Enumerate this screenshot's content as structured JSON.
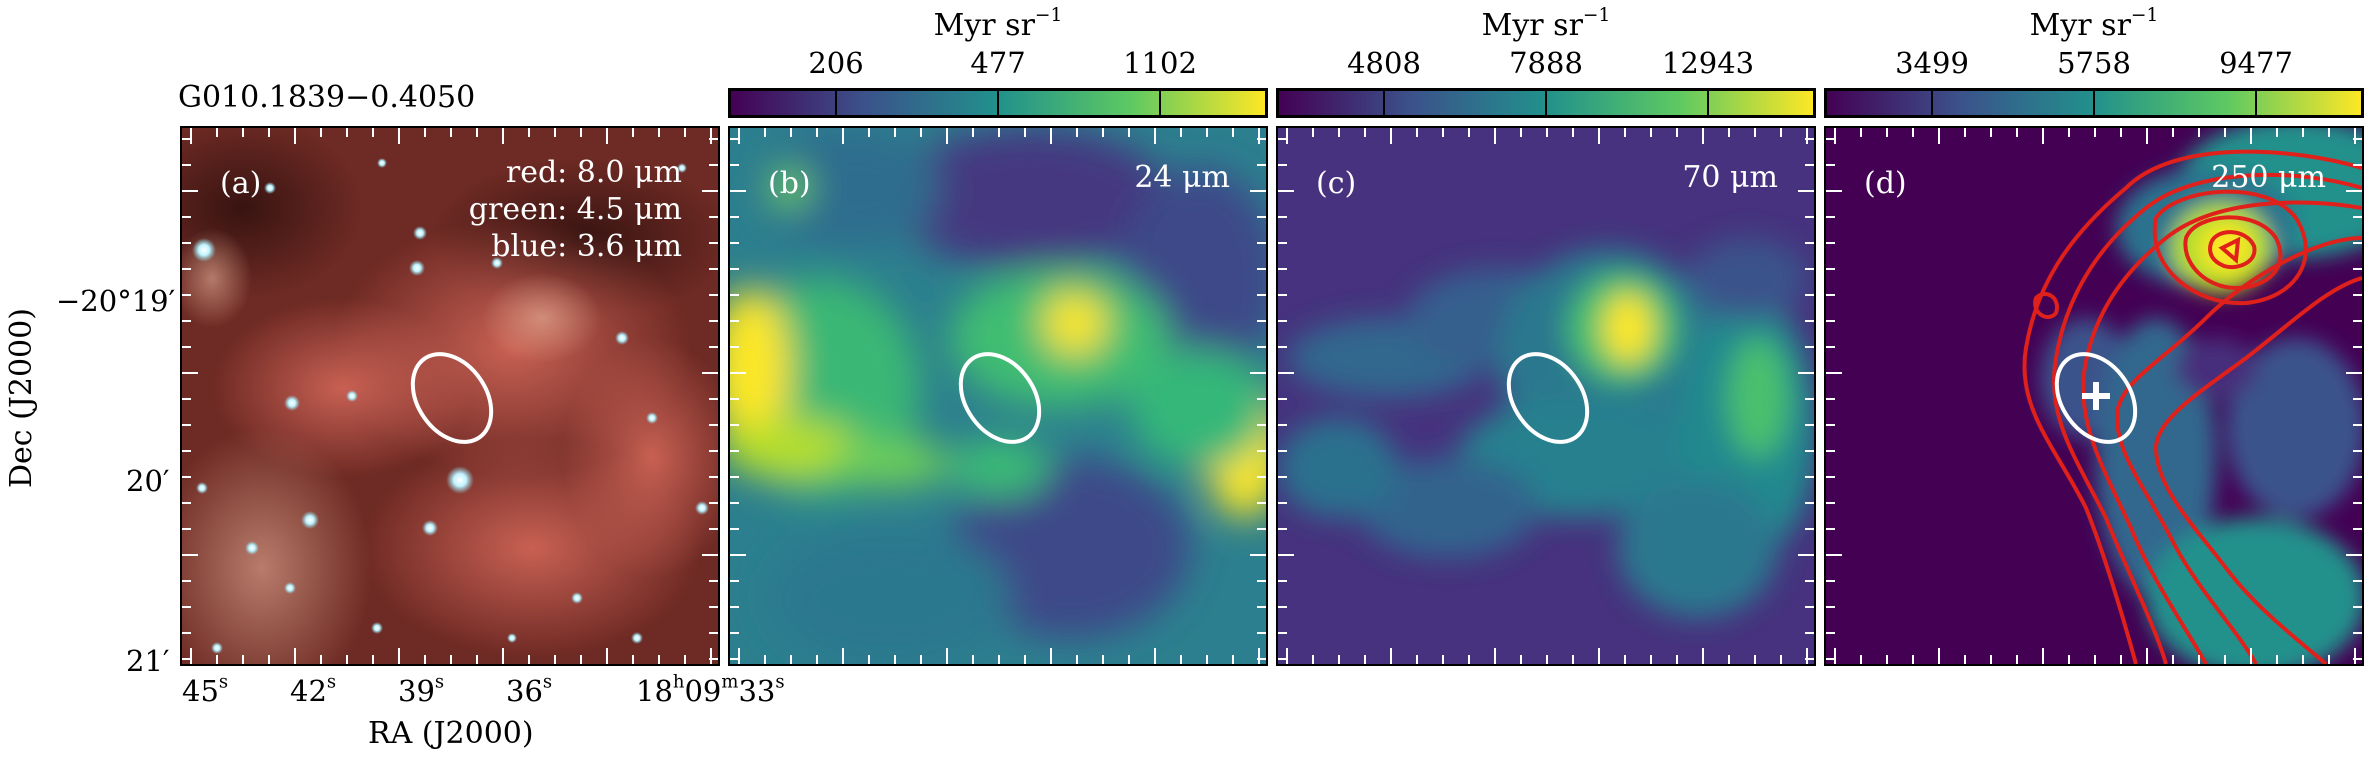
{
  "figure": {
    "source_name": "G010.1839−0.4050",
    "y_axis_label": "Dec (J2000)",
    "x_axis_label": "RA (J2000)",
    "dec_ticks": [
      "−20°19′",
      "20′",
      "21′"
    ],
    "ra_ticks": [
      {
        "value": "45",
        "unit": "s"
      },
      {
        "value": "42",
        "unit": "s"
      },
      {
        "value": "39",
        "unit": "s"
      },
      {
        "value": "36",
        "unit": "s"
      },
      {
        "value": "18",
        "unit": "h",
        "value2": "09",
        "unit2": "m",
        "value3": "33",
        "unit3": "s"
      }
    ]
  },
  "panels": [
    {
      "id": "a",
      "label": "(a)",
      "bands": [
        "red: 8.0 μm",
        "green: 4.5 μm",
        "blue: 3.6 μm"
      ]
    },
    {
      "id": "b",
      "label": "(b)",
      "band": "24 μm",
      "colorbar": {
        "unit": "Myr sr",
        "unit_exp": "−1",
        "ticks": [
          "206",
          "477",
          "1102"
        ]
      }
    },
    {
      "id": "c",
      "label": "(c)",
      "band": "70 μm",
      "colorbar": {
        "unit": "Myr sr",
        "unit_exp": "−1",
        "ticks": [
          "4808",
          "7888",
          "12943"
        ]
      }
    },
    {
      "id": "d",
      "label": "(d)",
      "band": "250 μm",
      "colorbar": {
        "unit": "Myr sr",
        "unit_exp": "−1",
        "ticks": [
          "3499",
          "5758",
          "9477"
        ]
      }
    }
  ],
  "colors": {
    "viridis": [
      "#440154",
      "#3b528b",
      "#21918c",
      "#5ec962",
      "#fde725"
    ],
    "ellipse": "#ffffff",
    "contour": "#e0201a"
  }
}
